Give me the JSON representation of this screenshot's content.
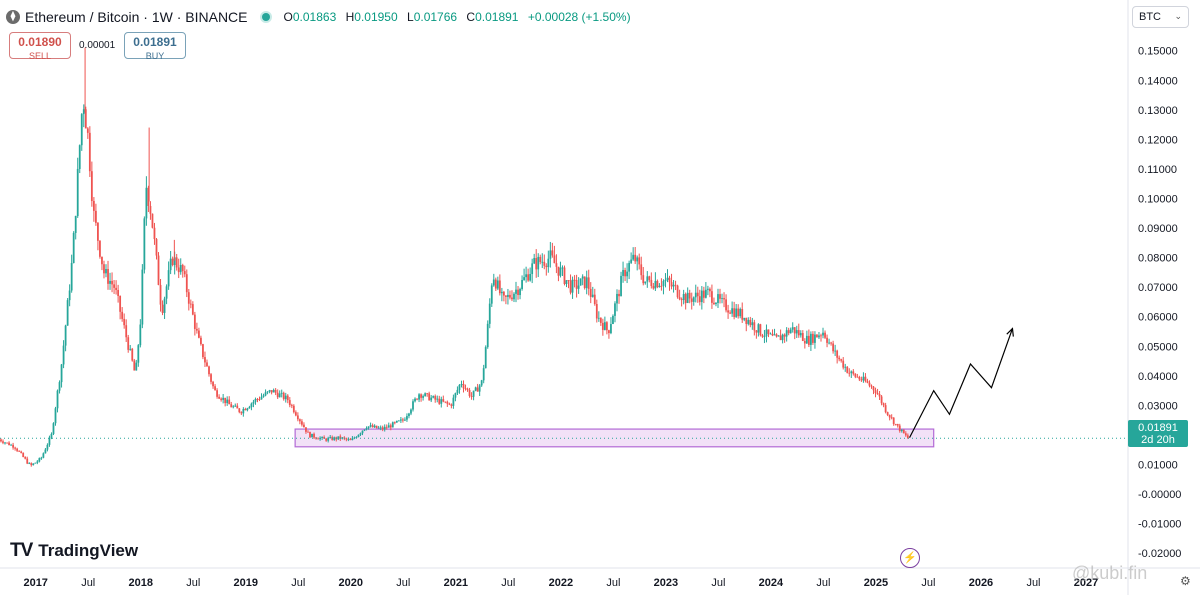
{
  "header": {
    "symbol_title": "Ethereum / Bitcoin · 1W · BINANCE",
    "logo_glyph": "⧫",
    "ohlc": {
      "o_label": "O",
      "o_value": "0.01863",
      "h_label": "H",
      "h_value": "0.01950",
      "l_label": "L",
      "l_value": "0.01766",
      "c_label": "C",
      "c_value": "0.01891",
      "change": "+0.00028 (+1.50%)"
    },
    "market_status_color": "#26a69a"
  },
  "trade": {
    "sell_price": "0.01890",
    "sell_label": "SELL",
    "spread": "0.00001",
    "buy_price": "0.01891",
    "buy_label": "BUY"
  },
  "currency_select": {
    "value": "BTC",
    "chevron": "⌄"
  },
  "branding": {
    "logo": "TV",
    "name": "TradingView"
  },
  "price_tag": {
    "price": "0.01891",
    "countdown": "2d 20h"
  },
  "footer": {
    "bolt_icon": "⚡",
    "settings_icon": "⚙",
    "watermark": "@kubi.fin"
  },
  "colors": {
    "up": "#26a69a",
    "down": "#ef5350",
    "zone": "#b36bd6",
    "path": "#000000"
  },
  "chart_data": {
    "type": "candlestick",
    "title": "",
    "y_axis": {
      "ticks": [
        "0.15000",
        "0.14000",
        "0.13000",
        "0.12000",
        "0.11000",
        "0.10000",
        "0.09000",
        "0.08000",
        "0.07000",
        "0.06000",
        "0.05000",
        "0.04000",
        "0.03000",
        "0.02000",
        "0.01000",
        "-0.00000",
        "-0.01000",
        "-0.02000"
      ],
      "tick_values": [
        0.15,
        0.14,
        0.13,
        0.12,
        0.11,
        0.1,
        0.09,
        0.08,
        0.07,
        0.06,
        0.05,
        0.04,
        0.03,
        0.02,
        0.01,
        0,
        -0.01,
        -0.02
      ],
      "ylim": [
        -0.025,
        0.157
      ]
    },
    "x_axis": {
      "ticks": [
        "2017",
        "Jul",
        "2018",
        "Jul",
        "2019",
        "Jul",
        "2020",
        "Jul",
        "2021",
        "Jul",
        "2022",
        "Jul",
        "2023",
        "Jul",
        "2024",
        "Jul",
        "2025",
        "Jul",
        "2026",
        "Jul",
        "2027"
      ],
      "tick_values": [
        2017.0,
        2017.5,
        2018.0,
        2018.5,
        2019.0,
        2019.5,
        2020.0,
        2020.5,
        2021.0,
        2021.5,
        2022.0,
        2022.5,
        2023.0,
        2023.5,
        2024.0,
        2024.5,
        2025.0,
        2025.5,
        2026.0,
        2026.5,
        2027.0
      ],
      "bold_ticks": [
        "2017",
        "2018",
        "2019",
        "2020",
        "2021",
        "2022",
        "2023",
        "2024",
        "2025",
        "2026",
        "2027"
      ],
      "xlim": [
        2016.66,
        2027.4
      ]
    },
    "series": [
      {
        "values": [
          [
            2016.65,
            0.0185
          ],
          [
            2016.8,
            0.016
          ],
          [
            2016.95,
            0.0095
          ],
          [
            2017.05,
            0.012
          ],
          [
            2017.15,
            0.02
          ],
          [
            2017.25,
            0.045
          ],
          [
            2017.35,
            0.08
          ],
          [
            2017.45,
            0.135
          ],
          [
            2017.5,
            0.12
          ],
          [
            2017.55,
            0.095
          ],
          [
            2017.65,
            0.075
          ],
          [
            2017.75,
            0.07
          ],
          [
            2017.85,
            0.055
          ],
          [
            2017.95,
            0.04
          ],
          [
            2018.0,
            0.06
          ],
          [
            2018.05,
            0.105
          ],
          [
            2018.1,
            0.095
          ],
          [
            2018.2,
            0.062
          ],
          [
            2018.3,
            0.08
          ],
          [
            2018.4,
            0.075
          ],
          [
            2018.55,
            0.052
          ],
          [
            2018.7,
            0.035
          ],
          [
            2018.85,
            0.03
          ],
          [
            2018.95,
            0.028
          ],
          [
            2019.1,
            0.032
          ],
          [
            2019.25,
            0.035
          ],
          [
            2019.4,
            0.032
          ],
          [
            2019.5,
            0.026
          ],
          [
            2019.6,
            0.02
          ],
          [
            2019.75,
            0.0185
          ],
          [
            2019.9,
            0.019
          ],
          [
            2020.0,
            0.018
          ],
          [
            2020.15,
            0.023
          ],
          [
            2020.3,
            0.022
          ],
          [
            2020.5,
            0.025
          ],
          [
            2020.65,
            0.034
          ],
          [
            2020.8,
            0.032
          ],
          [
            2020.95,
            0.03
          ],
          [
            2021.05,
            0.038
          ],
          [
            2021.15,
            0.033
          ],
          [
            2021.25,
            0.038
          ],
          [
            2021.3,
            0.055
          ],
          [
            2021.35,
            0.075
          ],
          [
            2021.45,
            0.065
          ],
          [
            2021.6,
            0.07
          ],
          [
            2021.75,
            0.078
          ],
          [
            2021.9,
            0.08
          ],
          [
            2022.0,
            0.075
          ],
          [
            2022.1,
            0.07
          ],
          [
            2022.25,
            0.072
          ],
          [
            2022.35,
            0.06
          ],
          [
            2022.45,
            0.055
          ],
          [
            2022.6,
            0.075
          ],
          [
            2022.7,
            0.08
          ],
          [
            2022.8,
            0.072
          ],
          [
            2023.0,
            0.072
          ],
          [
            2023.2,
            0.066
          ],
          [
            2023.4,
            0.068
          ],
          [
            2023.55,
            0.064
          ],
          [
            2023.75,
            0.06
          ],
          [
            2023.9,
            0.055
          ],
          [
            2024.05,
            0.052
          ],
          [
            2024.2,
            0.056
          ],
          [
            2024.35,
            0.052
          ],
          [
            2024.5,
            0.055
          ],
          [
            2024.6,
            0.048
          ],
          [
            2024.75,
            0.041
          ],
          [
            2024.9,
            0.038
          ],
          [
            2025.0,
            0.035
          ],
          [
            2025.1,
            0.028
          ],
          [
            2025.2,
            0.023
          ],
          [
            2025.3,
            0.019
          ],
          [
            2025.32,
            0.0189
          ]
        ]
      }
    ],
    "support_zone": {
      "x_range": [
        2019.47,
        2025.55
      ],
      "y_range": [
        0.016,
        0.022
      ]
    },
    "projection_path": [
      [
        2025.32,
        0.0191
      ],
      [
        2025.55,
        0.035
      ],
      [
        2025.7,
        0.027
      ],
      [
        2025.9,
        0.044
      ],
      [
        2026.1,
        0.036
      ],
      [
        2026.3,
        0.056
      ]
    ],
    "current_price": 0.01891,
    "grid": false,
    "legend": "none"
  }
}
